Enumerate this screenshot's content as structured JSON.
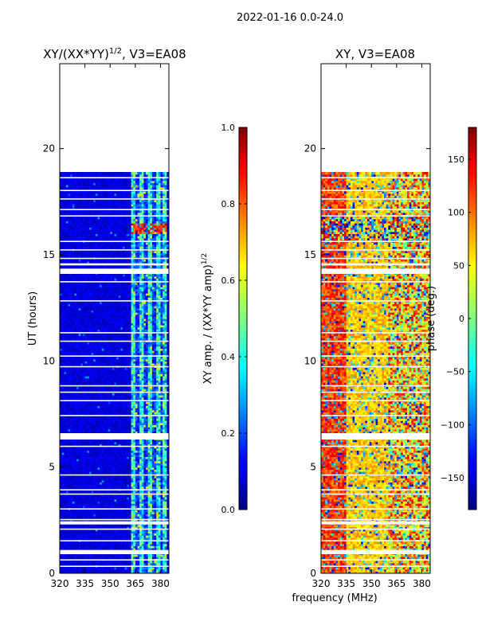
{
  "suptitle": "2022-01-16 0.0-24.0",
  "xlabel_shared": "frequency (MHz)",
  "chart_data": [
    {
      "type": "heatmap",
      "title": "XY/(XX*YY)^{1/2}, V3=EA08",
      "title_main": "XY/(XX*YY)",
      "title_sup": "1/2",
      "title_rest": ", V3=EA08",
      "ylabel": "UT (hours)",
      "xlim": [
        320,
        385
      ],
      "ylim": [
        0,
        24
      ],
      "xticks": [
        320,
        335,
        350,
        365,
        380
      ],
      "yticks": [
        0,
        5,
        10,
        15,
        20
      ],
      "data_end_hour": 18.9,
      "bright_band_mhz": [
        362,
        383
      ],
      "colorbar": {
        "label": "XY amp. / (XX*YY amp)^{1/2}",
        "label_main": "XY amp. / (XX*YY amp)",
        "label_sup": "1/2",
        "range": [
          0,
          1
        ],
        "ticks": [
          "0.0",
          "0.2",
          "0.4",
          "0.6",
          "0.8",
          "1.0"
        ]
      }
    },
    {
      "type": "heatmap",
      "title": "XY, V3=EA08",
      "xlim": [
        320,
        385
      ],
      "ylim": [
        0,
        24
      ],
      "xticks": [
        320,
        335,
        350,
        365,
        380
      ],
      "yticks": [
        0,
        5,
        10,
        15,
        20
      ],
      "data_end_hour": 18.9,
      "colorbar": {
        "label": "phase (deg.)",
        "range": [
          -180,
          180
        ],
        "ticks": [
          "150",
          "100",
          "50",
          "0",
          "−50",
          "−100",
          "−150"
        ],
        "tick_values": [
          150,
          100,
          50,
          0,
          -50,
          -100,
          -150
        ]
      }
    }
  ]
}
